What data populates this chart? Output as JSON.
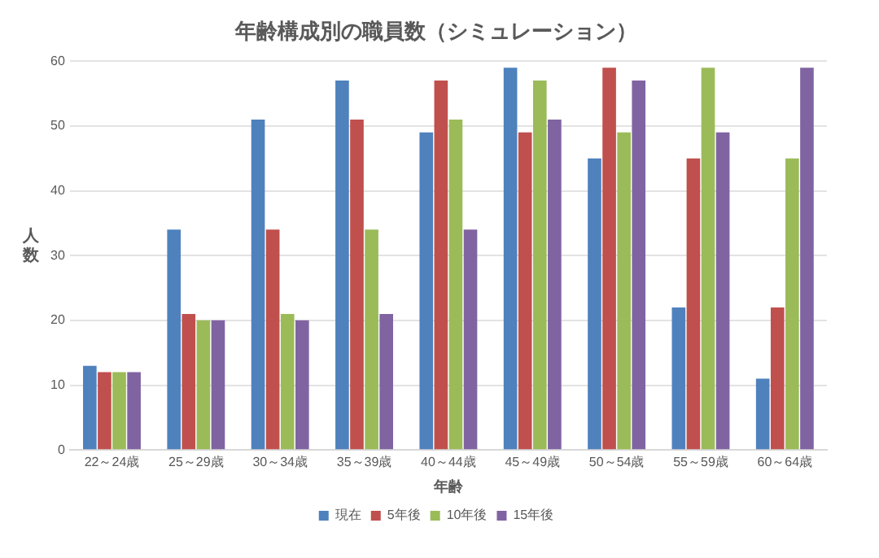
{
  "chart_data": {
    "type": "bar",
    "title": "年齢構成別の職員数（シミュレーション）",
    "xlabel": "年齢",
    "ylabel": "人数",
    "categories": [
      "22～24歳",
      "25～29歳",
      "30～34歳",
      "35～39歳",
      "40～44歳",
      "45～49歳",
      "50～54歳",
      "55～59歳",
      "60～64歳"
    ],
    "series": [
      {
        "name": "現在",
        "color": "#4f81bd",
        "values": [
          13,
          34,
          51,
          57,
          49,
          59,
          45,
          22,
          11
        ]
      },
      {
        "name": "5年後",
        "color": "#c0504d",
        "values": [
          12,
          21,
          34,
          51,
          57,
          49,
          59,
          45,
          22
        ]
      },
      {
        "name": "10年後",
        "color": "#9bbb59",
        "values": [
          12,
          20,
          21,
          34,
          51,
          57,
          49,
          59,
          45
        ]
      },
      {
        "name": "15年後",
        "color": "#8064a2",
        "values": [
          12,
          20,
          20,
          21,
          34,
          51,
          57,
          49,
          59
        ]
      }
    ],
    "ylim": [
      0,
      60
    ],
    "yticks": [
      0,
      10,
      20,
      30,
      40,
      50,
      60
    ],
    "grid": "y",
    "legend": "bottom"
  }
}
